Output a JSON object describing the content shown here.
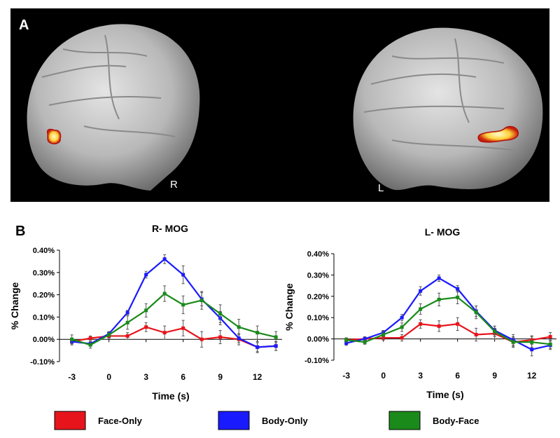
{
  "figure": {
    "panel_a": "A",
    "panel_b": "B",
    "right_label": "R",
    "left_label": "L"
  },
  "chart_data": [
    {
      "type": "line",
      "title": "R- MOG",
      "x_label": "Time (s)",
      "y_label": "% Change",
      "x": [
        -3,
        -1.5,
        0,
        1.5,
        3,
        4.5,
        6,
        7.5,
        9,
        10.5,
        12,
        13.5
      ],
      "xlim": [
        -4,
        14
      ],
      "xticks": [
        -3,
        0,
        3,
        6,
        9,
        12
      ],
      "ylim": [
        -0.1,
        0.4
      ],
      "yticks": [
        {
          "value": -0.1,
          "label": "-0.10%"
        },
        {
          "value": 0,
          "label": "0.00%"
        },
        {
          "value": 0.1,
          "label": "0.10%"
        },
        {
          "value": 0.2,
          "label": "0.20%"
        },
        {
          "value": 0.3,
          "label": "0.30%"
        },
        {
          "value": 0.4,
          "label": "0.40%"
        }
      ],
      "series": [
        {
          "name": "Face-Only",
          "color": "#e8141b",
          "values": [
            -0.01,
            0.005,
            0.015,
            0.015,
            0.055,
            0.03,
            0.05,
            0.0,
            0.01,
            0.0,
            -0.035,
            -0.03
          ],
          "errors": [
            0.015,
            0.01,
            0.01,
            0.015,
            0.02,
            0.03,
            0.035,
            0.035,
            0.03,
            0.025,
            0.02,
            0.02
          ]
        },
        {
          "name": "Body-Only",
          "color": "#1a1aff",
          "values": [
            -0.01,
            -0.02,
            0.025,
            0.12,
            0.29,
            0.36,
            0.29,
            0.18,
            0.095,
            0.005,
            -0.035,
            -0.03
          ],
          "errors": [
            0.015,
            0.01,
            0.01,
            0.01,
            0.015,
            0.02,
            0.04,
            0.03,
            0.03,
            0.02,
            0.025,
            0.02
          ]
        },
        {
          "name": "Body-Face",
          "color": "#1a8a1a",
          "values": [
            0.0,
            -0.025,
            0.02,
            0.075,
            0.13,
            0.205,
            0.155,
            0.175,
            0.115,
            0.055,
            0.03,
            0.01
          ],
          "errors": [
            0.02,
            0.015,
            0.015,
            0.03,
            0.03,
            0.035,
            0.04,
            0.04,
            0.04,
            0.035,
            0.03,
            0.025
          ]
        }
      ]
    },
    {
      "type": "line",
      "title": "L- MOG",
      "x_label": "Time (s)",
      "y_label": "% Change",
      "x": [
        -3,
        -1.5,
        0,
        1.5,
        3,
        4.5,
        6,
        7.5,
        9,
        10.5,
        12,
        13.5
      ],
      "xlim": [
        -4,
        14
      ],
      "xticks": [
        -3,
        0,
        3,
        6,
        9,
        12
      ],
      "ylim": [
        -0.1,
        0.4
      ],
      "yticks": [
        {
          "value": -0.1,
          "label": "-0.10%"
        },
        {
          "value": 0,
          "label": "0.00%"
        },
        {
          "value": 0.1,
          "label": "0.10%"
        },
        {
          "value": 0.2,
          "label": "0.20%"
        },
        {
          "value": 0.3,
          "label": "0.30%"
        },
        {
          "value": 0.4,
          "label": "0.40%"
        }
      ],
      "series": [
        {
          "name": "Face-Only",
          "color": "#e8141b",
          "values": [
            -0.005,
            0.0,
            0.005,
            0.005,
            0.07,
            0.06,
            0.07,
            0.02,
            0.025,
            -0.015,
            -0.005,
            0.01
          ],
          "errors": [
            0.01,
            0.01,
            0.01,
            0.015,
            0.02,
            0.025,
            0.03,
            0.03,
            0.025,
            0.02,
            0.02,
            0.02
          ]
        },
        {
          "name": "Body-Only",
          "color": "#1a1aff",
          "values": [
            -0.02,
            0.0,
            0.03,
            0.1,
            0.225,
            0.285,
            0.235,
            0.13,
            0.04,
            -0.005,
            -0.05,
            -0.03
          ],
          "errors": [
            0.01,
            0.01,
            0.01,
            0.015,
            0.02,
            0.015,
            0.015,
            0.025,
            0.02,
            0.025,
            0.03,
            0.02
          ]
        },
        {
          "name": "Body-Face",
          "color": "#1a8a1a",
          "values": [
            -0.005,
            -0.015,
            0.02,
            0.055,
            0.14,
            0.185,
            0.195,
            0.125,
            0.035,
            -0.015,
            -0.015,
            -0.025
          ],
          "errors": [
            0.01,
            0.01,
            0.015,
            0.02,
            0.025,
            0.03,
            0.03,
            0.03,
            0.025,
            0.025,
            0.025,
            0.02
          ]
        }
      ]
    }
  ]
}
